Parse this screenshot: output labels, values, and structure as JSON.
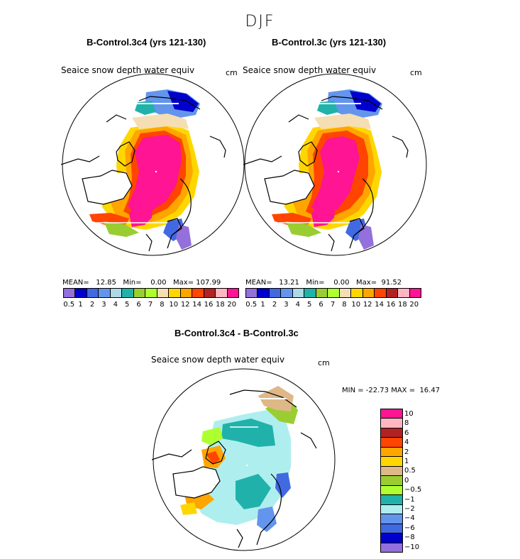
{
  "figure": {
    "season": "DJF",
    "variable": "Seaice snow depth water equiv",
    "units": "cm"
  },
  "panels": [
    {
      "title": "B-Control.3c4 (yrs 121-130)",
      "stats": {
        "mean_label": "MEAN=",
        "mean": "12.85",
        "min_label": "Min=",
        "min": "0.00",
        "max_label": "Max=",
        "max": "107.99"
      }
    },
    {
      "title": "B-Control.3c (yrs 121-130)",
      "stats": {
        "mean_label": "MEAN=",
        "mean": "13.21",
        "min_label": "Min=",
        "min": "0.00",
        "max_label": "Max=",
        "max": "91.52"
      }
    }
  ],
  "diff_panel": {
    "title": "B-Control.3c4 - B-Control.3c",
    "minmax": "MIN = -22.73 MAX =  16.47"
  },
  "colors": {
    "field": [
      "#9370db",
      "#0000cd",
      "#4169e1",
      "#6495ed",
      "#add8e6",
      "#20b2aa",
      "#9acd32",
      "#adff2f",
      "#f5deb3",
      "#ffd700",
      "#ffa500",
      "#ff4500",
      "#b22222",
      "#ffb6c1",
      "#ff1493"
    ],
    "diff": [
      "#ff1493",
      "#ffb6c1",
      "#b22222",
      "#ff4500",
      "#ffa500",
      "#ffd700",
      "#deb887",
      "#9acd32",
      "#adff2f",
      "#20b2aa",
      "#afeeee",
      "#6495ed",
      "#4169e1",
      "#0000cd",
      "#9370db"
    ]
  },
  "chart_data": [
    {
      "type": "heatmap",
      "title": "B-Control.3c4 (yrs 121-130)",
      "subtitle": "Seaice snow depth water equiv (cm), DJF",
      "projection": "north polar stereographic",
      "levels": [
        "0.5",
        "1",
        "2",
        "3",
        "4",
        "5",
        "6",
        "7",
        "8",
        "10",
        "12",
        "14",
        "16",
        "18",
        "20"
      ],
      "stats": {
        "mean": 12.85,
        "min": 0.0,
        "max": 107.99
      }
    },
    {
      "type": "heatmap",
      "title": "B-Control.3c (yrs 121-130)",
      "subtitle": "Seaice snow depth water equiv (cm), DJF",
      "projection": "north polar stereographic",
      "levels": [
        "0.5",
        "1",
        "2",
        "3",
        "4",
        "5",
        "6",
        "7",
        "8",
        "10",
        "12",
        "14",
        "16",
        "18",
        "20"
      ],
      "stats": {
        "mean": 13.21,
        "min": 0.0,
        "max": 91.52
      }
    },
    {
      "type": "heatmap",
      "title": "B-Control.3c4 - B-Control.3c",
      "subtitle": "Seaice snow depth water equiv (cm), DJF difference",
      "projection": "north polar stereographic",
      "levels": [
        "10",
        "8",
        "6",
        "4",
        "2",
        "1",
        "0.5",
        "0",
        "−0.5",
        "−1",
        "−2",
        "−4",
        "−6",
        "−8",
        "−10"
      ],
      "stats": {
        "min": -22.73,
        "max": 16.47
      }
    }
  ]
}
